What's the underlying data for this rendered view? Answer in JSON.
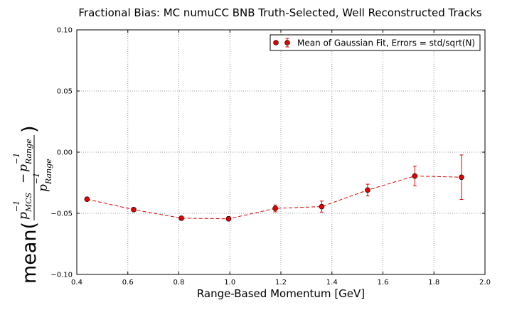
{
  "chart_data": {
    "type": "scatter",
    "title": "Fractional Bias: MC numuCC BNB Truth-Selected, Well Reconstructed Tracks",
    "xlabel": "Range-Based Momentum [GeV]",
    "ylabel": {
      "prefix": "mean(",
      "num_left_base": "p",
      "num_left_sub": "MCS",
      "num_op": "−",
      "num_right_base": "p",
      "num_right_sub": "Range",
      "den_base": "p",
      "den_sub": "Range",
      "exp": "−1",
      "suffix": ")"
    },
    "xlim": [
      0.4,
      2.0
    ],
    "ylim": [
      -0.1,
      0.1
    ],
    "xticks": [
      0.4,
      0.6,
      0.8,
      1.0,
      1.2,
      1.4,
      1.6,
      1.8,
      2.0
    ],
    "xtick_labels": [
      "0.4",
      "0.6",
      "0.8",
      "1.0",
      "1.2",
      "1.4",
      "1.6",
      "1.8",
      "2.0"
    ],
    "yticks": [
      -0.1,
      -0.05,
      0.0,
      0.05,
      0.1
    ],
    "ytick_labels": [
      "−0.10",
      "−0.05",
      "0.00",
      "0.05",
      "0.10"
    ],
    "grid": true,
    "legend": {
      "position": "top-right",
      "label": "Mean of Gaussian Fit, Errors = std/sqrt(N)"
    },
    "series": [
      {
        "name": "Mean of Gaussian Fit, Errors = std/sqrt(N)",
        "color": "#e00000",
        "line_style": "dashed",
        "marker": "circle",
        "x": [
          0.44,
          0.623,
          0.81,
          0.995,
          1.178,
          1.36,
          1.54,
          1.725,
          1.908
        ],
        "y": [
          -0.0385,
          -0.047,
          -0.054,
          -0.0545,
          -0.046,
          -0.0445,
          -0.031,
          -0.0195,
          -0.0205
        ],
        "yerr": [
          0.001,
          0.0015,
          0.0015,
          0.0018,
          0.0028,
          0.0045,
          0.0048,
          0.008,
          0.0182
        ]
      }
    ]
  }
}
